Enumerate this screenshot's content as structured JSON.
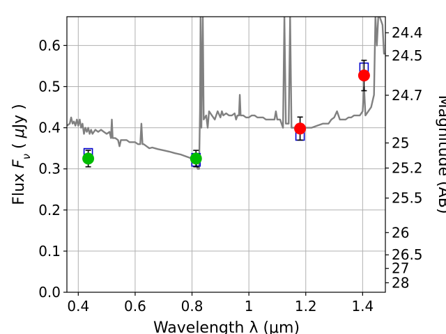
{
  "chart_data": {
    "type": "scatter",
    "title": "",
    "xlabel": "Wavelength  λ (μm)",
    "ylabel": "Flux  F_ν  ( μJy )",
    "y2label": "Magnitude (AB)",
    "xlim": [
      0.36,
      1.48
    ],
    "ylim": [
      0.0,
      0.67
    ],
    "grid": true,
    "x_ticks": [
      {
        "value": 0.4,
        "label": "0.4"
      },
      {
        "value": 0.6,
        "label": "0.6"
      },
      {
        "value": 0.8,
        "label": "0.8"
      },
      {
        "value": 1.0,
        "label": "1"
      },
      {
        "value": 1.2,
        "label": "1.2"
      },
      {
        "value": 1.4,
        "label": "1.4"
      }
    ],
    "y_ticks": [
      {
        "value": 0.0,
        "label": "0.0"
      },
      {
        "value": 0.1,
        "label": "0.1"
      },
      {
        "value": 0.2,
        "label": "0.2"
      },
      {
        "value": 0.3,
        "label": "0.3"
      },
      {
        "value": 0.4,
        "label": "0.4"
      },
      {
        "value": 0.5,
        "label": "0.5"
      },
      {
        "value": 0.6,
        "label": "0.6"
      }
    ],
    "y2_ticks": [
      {
        "flux": 0.631,
        "label": "24.4"
      },
      {
        "flux": 0.575,
        "label": "24.5"
      },
      {
        "flux": 0.479,
        "label": "24.7"
      },
      {
        "flux": 0.363,
        "label": "25"
      },
      {
        "flux": 0.302,
        "label": "25.2"
      },
      {
        "flux": 0.229,
        "label": "25.5"
      },
      {
        "flux": 0.145,
        "label": "26"
      },
      {
        "flux": 0.091,
        "label": "26.5"
      },
      {
        "flux": 0.058,
        "label": "27"
      },
      {
        "flux": 0.023,
        "label": "28"
      }
    ],
    "model_spectrum": {
      "color": "#808080",
      "points": [
        [
          0.36,
          0.405
        ],
        [
          0.37,
          0.41
        ],
        [
          0.375,
          0.425
        ],
        [
          0.38,
          0.41
        ],
        [
          0.385,
          0.415
        ],
        [
          0.39,
          0.405
        ],
        [
          0.395,
          0.42
        ],
        [
          0.4,
          0.405
        ],
        [
          0.405,
          0.42
        ],
        [
          0.41,
          0.4
        ],
        [
          0.415,
          0.41
        ],
        [
          0.42,
          0.385
        ],
        [
          0.425,
          0.4
        ],
        [
          0.43,
          0.39
        ],
        [
          0.435,
          0.4
        ],
        [
          0.44,
          0.385
        ],
        [
          0.445,
          0.395
        ],
        [
          0.45,
          0.385
        ],
        [
          0.46,
          0.395
        ],
        [
          0.47,
          0.39
        ],
        [
          0.48,
          0.395
        ],
        [
          0.49,
          0.39
        ],
        [
          0.5,
          0.385
        ],
        [
          0.51,
          0.39
        ],
        [
          0.515,
          0.375
        ],
        [
          0.518,
          0.42
        ],
        [
          0.521,
          0.375
        ],
        [
          0.53,
          0.375
        ],
        [
          0.54,
          0.37
        ],
        [
          0.545,
          0.355
        ],
        [
          0.55,
          0.37
        ],
        [
          0.56,
          0.37
        ],
        [
          0.57,
          0.37
        ],
        [
          0.58,
          0.365
        ],
        [
          0.59,
          0.365
        ],
        [
          0.6,
          0.365
        ],
        [
          0.61,
          0.36
        ],
        [
          0.618,
          0.36
        ],
        [
          0.622,
          0.41
        ],
        [
          0.626,
          0.36
        ],
        [
          0.63,
          0.36
        ],
        [
          0.64,
          0.355
        ],
        [
          0.65,
          0.35
        ],
        [
          0.66,
          0.352
        ],
        [
          0.68,
          0.348
        ],
        [
          0.7,
          0.345
        ],
        [
          0.72,
          0.342
        ],
        [
          0.74,
          0.338
        ],
        [
          0.76,
          0.335
        ],
        [
          0.78,
          0.33
        ],
        [
          0.8,
          0.325
        ],
        [
          0.81,
          0.318
        ],
        [
          0.815,
          0.31
        ],
        [
          0.82,
          0.3
        ],
        [
          0.825,
          0.3
        ],
        [
          0.828,
          0.44
        ],
        [
          0.83,
          0.67
        ],
        [
          0.833,
          0.4
        ],
        [
          0.838,
          0.67
        ],
        [
          0.841,
          0.42
        ],
        [
          0.85,
          0.43
        ],
        [
          0.855,
          0.4
        ],
        [
          0.86,
          0.44
        ],
        [
          0.87,
          0.43
        ],
        [
          0.88,
          0.42
        ],
        [
          0.89,
          0.44
        ],
        [
          0.9,
          0.425
        ],
        [
          0.905,
          0.44
        ],
        [
          0.91,
          0.43
        ],
        [
          0.92,
          0.435
        ],
        [
          0.93,
          0.43
        ],
        [
          0.94,
          0.43
        ],
        [
          0.95,
          0.435
        ],
        [
          0.955,
          0.42
        ],
        [
          0.96,
          0.43
        ],
        [
          0.965,
          0.43
        ],
        [
          0.968,
          0.48
        ],
        [
          0.971,
          0.43
        ],
        [
          0.98,
          0.43
        ],
        [
          0.99,
          0.425
        ],
        [
          1.0,
          0.425
        ],
        [
          1.01,
          0.43
        ],
        [
          1.02,
          0.43
        ],
        [
          1.03,
          0.425
        ],
        [
          1.04,
          0.425
        ],
        [
          1.05,
          0.425
        ],
        [
          1.06,
          0.42
        ],
        [
          1.08,
          0.42
        ],
        [
          1.09,
          0.42
        ],
        [
          1.095,
          0.44
        ],
        [
          1.1,
          0.42
        ],
        [
          1.11,
          0.42
        ],
        [
          1.12,
          0.4
        ],
        [
          1.125,
          0.67
        ],
        [
          1.13,
          0.41
        ],
        [
          1.14,
          0.41
        ],
        [
          1.145,
          0.67
        ],
        [
          1.15,
          0.4
        ],
        [
          1.16,
          0.4
        ],
        [
          1.18,
          0.4
        ],
        [
          1.2,
          0.4
        ],
        [
          1.22,
          0.4
        ],
        [
          1.24,
          0.405
        ],
        [
          1.26,
          0.41
        ],
        [
          1.28,
          0.41
        ],
        [
          1.29,
          0.42
        ],
        [
          1.3,
          0.425
        ],
        [
          1.31,
          0.44
        ],
        [
          1.32,
          0.42
        ],
        [
          1.33,
          0.42
        ],
        [
          1.34,
          0.42
        ],
        [
          1.35,
          0.425
        ],
        [
          1.36,
          0.425
        ],
        [
          1.37,
          0.43
        ],
        [
          1.38,
          0.43
        ],
        [
          1.39,
          0.43
        ],
        [
          1.4,
          0.44
        ],
        [
          1.405,
          0.5
        ],
        [
          1.41,
          0.43
        ],
        [
          1.42,
          0.44
        ],
        [
          1.43,
          0.45
        ],
        [
          1.44,
          0.48
        ],
        [
          1.445,
          0.67
        ],
        [
          1.45,
          0.6
        ],
        [
          1.455,
          0.67
        ],
        [
          1.46,
          0.67
        ],
        [
          1.47,
          0.65
        ],
        [
          1.475,
          0.58
        ],
        [
          1.48,
          0.58
        ]
      ]
    },
    "model_photometry": {
      "marker": "square",
      "color": "#0000cc",
      "points": [
        {
          "x": 0.435,
          "y": 0.334
        },
        {
          "x": 0.814,
          "y": 0.322
        },
        {
          "x": 1.18,
          "y": 0.385
        },
        {
          "x": 1.405,
          "y": 0.542
        }
      ]
    },
    "observed": [
      {
        "x": 0.435,
        "y": 0.325,
        "yerr_low": 0.02,
        "yerr_high": 0.02,
        "color": "#00bb00"
      },
      {
        "x": 0.814,
        "y": 0.325,
        "yerr_low": 0.02,
        "yerr_high": 0.02,
        "color": "#00bb00"
      },
      {
        "x": 1.18,
        "y": 0.398,
        "yerr_low": 0.028,
        "yerr_high": 0.028,
        "color": "#ff0000"
      },
      {
        "x": 1.405,
        "y": 0.527,
        "yerr_low": 0.037,
        "yerr_high": 0.037,
        "color": "#ff0000"
      }
    ]
  }
}
